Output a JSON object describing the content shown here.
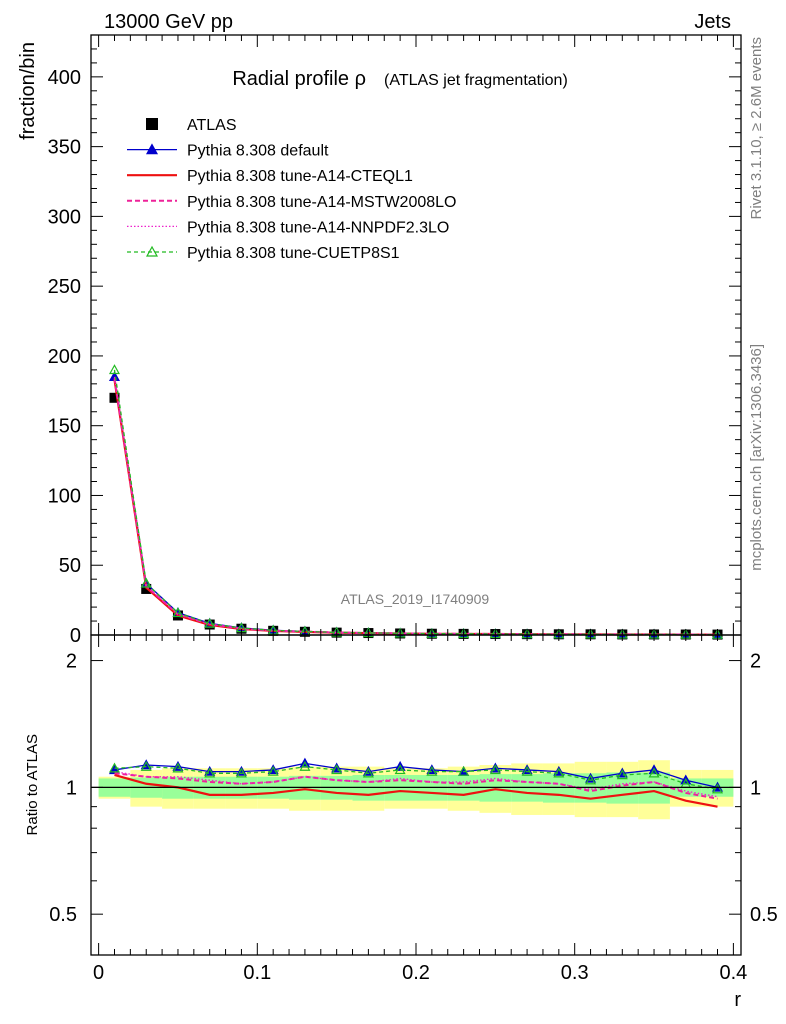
{
  "header": {
    "left": "13000 GeV pp",
    "right": "Jets"
  },
  "side": {
    "rivet": "Rivet 3.1.10, ≥ 2.6M events",
    "site": "mcplots.cern.ch [arXiv:1306.3436]"
  },
  "chart_data": [
    {
      "type": "line",
      "title": "Radial profile ρ",
      "subtitle": "(ATLAS jet fragmentation)",
      "watermark": "ATLAS_2019_I1740909",
      "xlabel": "r",
      "ylabel": "fraction/bin",
      "xlim": [
        0,
        0.4
      ],
      "ylim": [
        0,
        430
      ],
      "xticks": [
        "0",
        "0.1",
        "0.2",
        "0.3",
        "0.4"
      ],
      "yticks": [
        "0",
        "50",
        "100",
        "150",
        "200",
        "250",
        "300",
        "350",
        "400"
      ],
      "legend_position": "top-left",
      "x": [
        0.01,
        0.03,
        0.05,
        0.07,
        0.09,
        0.11,
        0.13,
        0.15,
        0.17,
        0.19,
        0.21,
        0.23,
        0.25,
        0.27,
        0.29,
        0.31,
        0.33,
        0.35,
        0.37,
        0.39
      ],
      "series": [
        {
          "name": "ATLAS",
          "color": "#000000",
          "marker": "square",
          "values": [
            170,
            33,
            14,
            7.5,
            4.5,
            3.0,
            2.3,
            1.7,
            1.4,
            1.1,
            0.9,
            0.8,
            0.7,
            0.6,
            0.5,
            0.5,
            0.4,
            0.4,
            0.35,
            0.3
          ]
        },
        {
          "name": "Pythia 8.308 default",
          "color": "#0000cc",
          "marker": "triangle",
          "values": [
            185,
            37,
            16,
            8.3,
            5.1,
            3.4,
            2.6,
            1.9,
            1.55,
            1.25,
            1.0,
            0.9,
            0.78,
            0.66,
            0.55,
            0.53,
            0.44,
            0.45,
            0.37,
            0.3
          ]
        },
        {
          "name": "Pythia 8.308 tune-A14-CTEQL1",
          "color": "#ee1111",
          "marker": "none",
          "values": [
            183,
            34,
            14,
            7.2,
            4.3,
            2.9,
            2.2,
            1.65,
            1.33,
            1.07,
            0.86,
            0.76,
            0.69,
            0.57,
            0.48,
            0.47,
            0.38,
            0.39,
            0.32,
            0.27
          ]
        },
        {
          "name": "Pythia 8.308 tune-A14-MSTW2008LO",
          "color": "#ee2299",
          "marker": "none",
          "values": [
            184,
            35,
            14.8,
            7.7,
            4.6,
            3.1,
            2.45,
            1.76,
            1.43,
            1.14,
            0.92,
            0.82,
            0.73,
            0.61,
            0.51,
            0.49,
            0.41,
            0.41,
            0.33,
            0.28
          ]
        },
        {
          "name": "Pythia 8.308 tune-A14-NNPDF2.3LO",
          "color": "#ee22cc",
          "marker": "none",
          "values": [
            185,
            35,
            14.9,
            7.8,
            4.6,
            3.1,
            2.45,
            1.77,
            1.44,
            1.15,
            0.93,
            0.82,
            0.73,
            0.62,
            0.51,
            0.5,
            0.41,
            0.41,
            0.34,
            0.28
          ]
        },
        {
          "name": "Pythia 8.308 tune-CUETP8S1",
          "color": "#22bb22",
          "marker": "open-triangle",
          "values": [
            190,
            37,
            15.8,
            8.2,
            5.0,
            3.3,
            2.55,
            1.87,
            1.51,
            1.23,
            0.98,
            0.88,
            0.77,
            0.65,
            0.55,
            0.52,
            0.43,
            0.44,
            0.36,
            0.3
          ]
        }
      ]
    },
    {
      "type": "line",
      "xlabel": "r",
      "ylabel": "Ratio to ATLAS",
      "xlim": [
        0,
        0.4
      ],
      "ylim": [
        0.4,
        2.3
      ],
      "scale": "log",
      "yticks": [
        "0.5",
        "1",
        "2"
      ],
      "x": [
        0.01,
        0.03,
        0.05,
        0.07,
        0.09,
        0.11,
        0.13,
        0.15,
        0.17,
        0.19,
        0.21,
        0.23,
        0.25,
        0.27,
        0.29,
        0.31,
        0.33,
        0.35,
        0.37,
        0.39
      ],
      "bands": {
        "green_half_width": [
          0.05,
          0.055,
          0.06,
          0.06,
          0.06,
          0.06,
          0.065,
          0.065,
          0.07,
          0.07,
          0.07,
          0.07,
          0.075,
          0.075,
          0.08,
          0.08,
          0.085,
          0.085,
          0.05,
          0.05
        ],
        "yellow_half_width": [
          0.06,
          0.1,
          0.11,
          0.11,
          0.11,
          0.11,
          0.12,
          0.12,
          0.12,
          0.11,
          0.11,
          0.12,
          0.13,
          0.14,
          0.14,
          0.15,
          0.15,
          0.16,
          0.1,
          0.1
        ]
      },
      "series": [
        {
          "name": "Pythia 8.308 default",
          "color": "#0000cc",
          "values": [
            1.1,
            1.13,
            1.12,
            1.09,
            1.09,
            1.1,
            1.14,
            1.11,
            1.09,
            1.12,
            1.1,
            1.09,
            1.11,
            1.1,
            1.09,
            1.05,
            1.08,
            1.1,
            1.04,
            1.0
          ]
        },
        {
          "name": "Pythia 8.308 tune-A14-CTEQL1",
          "color": "#ee1111",
          "values": [
            1.07,
            1.02,
            1.0,
            0.96,
            0.96,
            0.97,
            0.99,
            0.97,
            0.96,
            0.98,
            0.97,
            0.96,
            0.99,
            0.97,
            0.96,
            0.94,
            0.96,
            0.98,
            0.93,
            0.9
          ]
        },
        {
          "name": "Pythia 8.308 tune-A14-MSTW2008LO",
          "color": "#ee2299",
          "values": [
            1.08,
            1.06,
            1.05,
            1.03,
            1.02,
            1.03,
            1.06,
            1.04,
            1.03,
            1.04,
            1.03,
            1.02,
            1.04,
            1.03,
            1.02,
            0.98,
            1.01,
            1.03,
            0.97,
            0.94
          ]
        },
        {
          "name": "Pythia 8.308 tune-A14-NNPDF2.3LO",
          "color": "#ee22cc",
          "values": [
            1.09,
            1.06,
            1.06,
            1.04,
            1.02,
            1.03,
            1.06,
            1.04,
            1.03,
            1.05,
            1.03,
            1.03,
            1.05,
            1.03,
            1.02,
            0.99,
            1.02,
            1.03,
            0.98,
            0.95
          ]
        },
        {
          "name": "Pythia 8.308 tune-CUETP8S1",
          "color": "#22bb22",
          "values": [
            1.11,
            1.12,
            1.11,
            1.08,
            1.08,
            1.09,
            1.12,
            1.1,
            1.08,
            1.1,
            1.09,
            1.09,
            1.1,
            1.09,
            1.08,
            1.04,
            1.07,
            1.08,
            1.02,
            0.99
          ]
        }
      ]
    }
  ]
}
